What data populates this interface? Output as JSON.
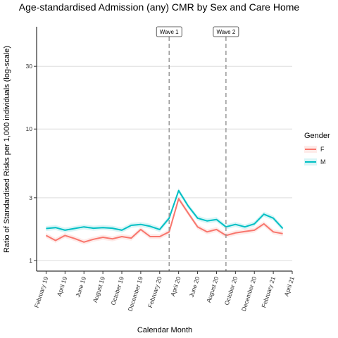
{
  "chart_data": {
    "type": "line",
    "title": "Age-standardised Admission (any) CMR by Sex and Care Home",
    "xlabel": "Calendar Month",
    "ylabel": "Ratio of Standardised Risks per 1,000 individuals (log-scale)",
    "y_scale": "log",
    "ylim": [
      0.83,
      60
    ],
    "y_ticks": [
      1,
      3,
      10,
      30
    ],
    "y_tick_labels": [
      "1",
      "3",
      "10",
      "30"
    ],
    "x_ticks": [
      "February 19",
      "April 19",
      "June 19",
      "August 19",
      "October 19",
      "December 19",
      "February 20",
      "April 20",
      "June 20",
      "August 20",
      "October 20",
      "December 20",
      "February 21",
      "April 21"
    ],
    "x": [
      "2019-02",
      "2019-03",
      "2019-04",
      "2019-05",
      "2019-06",
      "2019-07",
      "2019-08",
      "2019-09",
      "2019-10",
      "2019-11",
      "2019-12",
      "2020-01",
      "2020-02",
      "2020-03",
      "2020-04",
      "2020-05",
      "2020-06",
      "2020-07",
      "2020-08",
      "2020-09",
      "2020-10",
      "2020-11",
      "2020-12",
      "2021-01",
      "2021-02",
      "2021-03"
    ],
    "series": [
      {
        "name": "F",
        "color": "#F8766D",
        "values": [
          1.55,
          1.42,
          1.55,
          1.47,
          1.38,
          1.45,
          1.5,
          1.46,
          1.52,
          1.48,
          1.72,
          1.52,
          1.52,
          1.65,
          2.95,
          2.3,
          1.8,
          1.65,
          1.72,
          1.55,
          1.62,
          1.66,
          1.7,
          1.9,
          1.65,
          1.6
        ]
      },
      {
        "name": "M",
        "color": "#00BFC4",
        "values": [
          1.75,
          1.78,
          1.7,
          1.75,
          1.8,
          1.76,
          1.78,
          1.76,
          1.7,
          1.85,
          1.88,
          1.82,
          1.72,
          2.1,
          3.4,
          2.6,
          2.1,
          2.0,
          2.05,
          1.8,
          1.88,
          1.8,
          1.9,
          2.25,
          2.1,
          1.75
        ]
      }
    ],
    "annotations": [
      {
        "label": "Wave 1",
        "x": "2020-03"
      },
      {
        "label": "Wave 2",
        "x": "2020-09"
      }
    ],
    "legend": {
      "title": "Gender",
      "position": "right"
    },
    "grid": true
  }
}
